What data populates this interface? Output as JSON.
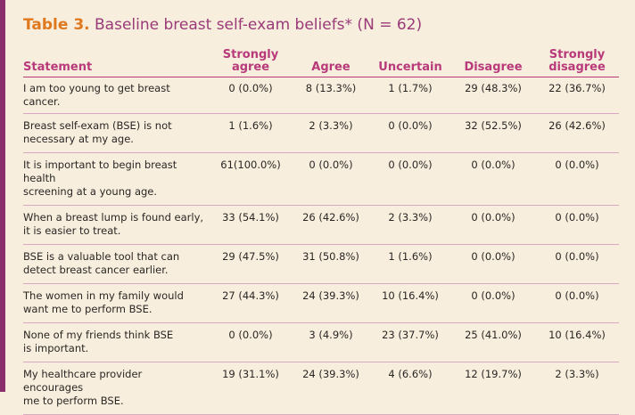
{
  "caption": {
    "number": "Table 3.",
    "title": "Baseline breast self-exam beliefs* (N = 62)"
  },
  "headers": {
    "statement": "Statement",
    "strongly_agree": [
      "Strongly",
      "agree"
    ],
    "agree": "Agree",
    "uncertain": "Uncertain",
    "disagree": "Disagree",
    "strongly_disagree": [
      "Strongly",
      "disagree"
    ]
  },
  "rows": [
    {
      "statement": [
        "I am too young to get breast cancer."
      ],
      "cells": [
        "0 (0.0%)",
        "8 (13.3%)",
        "1 (1.7%)",
        "29 (48.3%)",
        "22 (36.7%)"
      ]
    },
    {
      "statement": [
        "Breast self-exam (BSE) is not",
        "necessary at my age."
      ],
      "cells": [
        "1 (1.6%)",
        "2 (3.3%)",
        "0 (0.0%)",
        "32 (52.5%)",
        "26 (42.6%)"
      ]
    },
    {
      "statement": [
        "It is important to begin breast health",
        "screening at a young age."
      ],
      "cells": [
        "61(100.0%)",
        "0 (0.0%)",
        "0 (0.0%)",
        "0 (0.0%)",
        "0 (0.0%)"
      ]
    },
    {
      "statement": [
        "When a breast lump is found early,",
        "it is easier to treat."
      ],
      "cells": [
        "33 (54.1%)",
        "26 (42.6%)",
        "2 (3.3%)",
        "0 (0.0%)",
        "0 (0.0%)"
      ]
    },
    {
      "statement": [
        "BSE is a valuable tool that can",
        "detect breast cancer earlier."
      ],
      "cells": [
        "29 (47.5%)",
        "31 (50.8%)",
        "1 (1.6%)",
        "0 (0.0%)",
        "0 (0.0%)"
      ]
    },
    {
      "statement": [
        "The women in my family would",
        "want me to perform BSE."
      ],
      "cells": [
        "27 (44.3%)",
        "24 (39.3%)",
        "10 (16.4%)",
        "0 (0.0%)",
        "0 (0.0%)"
      ]
    },
    {
      "statement": [
        "None of my friends think BSE",
        "is important."
      ],
      "cells": [
        "0 (0.0%)",
        "3 (4.9%)",
        "23 (37.7%)",
        "25 (41.0%)",
        "10 (16.4%)"
      ]
    },
    {
      "statement": [
        "My healthcare provider encourages",
        "me to perform BSE."
      ],
      "cells": [
        "19 (31.1%)",
        "24 (39.3%)",
        "4 (6.6%)",
        "12 (19.7%)",
        "2 (3.3%)"
      ]
    }
  ],
  "colors": {
    "background": "#f7eedd",
    "accent_bar": "#8a2f6b",
    "caption_number": "#e0781e",
    "caption_title": "#9a3a78",
    "header_text": "#b83a7a",
    "rule": "#d9a9c3"
  }
}
